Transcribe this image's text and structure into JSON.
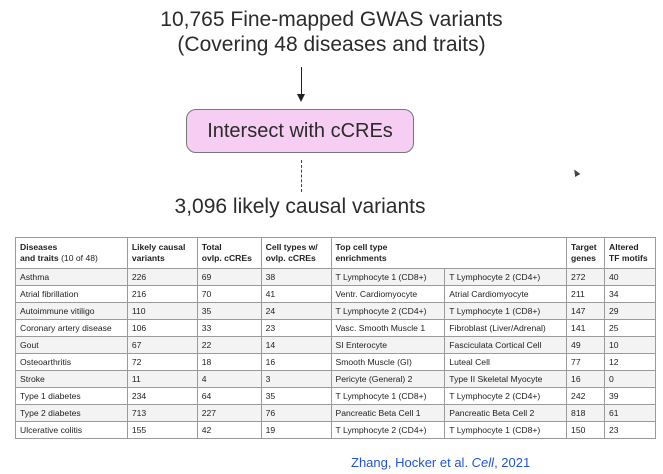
{
  "header": {
    "line1": "10,765 Fine-mapped GWAS variants",
    "line2": "(Covering 48 diseases and traits)"
  },
  "step_box": "Intersect with cCREs",
  "result": "3,096 likely causal variants",
  "table": {
    "columns": [
      {
        "line1": "Diseases",
        "line2": "and traits",
        "line2_extra": " (10 of 48)"
      },
      {
        "line1": "Likely causal",
        "line2": "variants"
      },
      {
        "line1": "Total",
        "line2": "ovlp. cCREs"
      },
      {
        "line1": "Cell types w/",
        "line2": "ovlp. cCREs"
      },
      {
        "line1": "Top cell type",
        "line2": "enrichments"
      },
      {
        "line1": "Target",
        "line2": "genes"
      },
      {
        "line1": "Altered",
        "line2": "TF motifs"
      }
    ],
    "rows": [
      [
        "Asthma",
        "226",
        "69",
        "38",
        "T Lymphocyte 1 (CD8+)",
        "T Lymphocyte 2 (CD4+)",
        "272",
        "40"
      ],
      [
        "Atrial fibrillation",
        "216",
        "70",
        "41",
        "Ventr. Cardiomyocyte",
        "Atrial Cardiomyocyte",
        "211",
        "34"
      ],
      [
        "Autoimmune vitiligo",
        "110",
        "35",
        "24",
        "T Lymphocyte 2 (CD4+)",
        "T Lymphocyte 1 (CD8+)",
        "147",
        "29"
      ],
      [
        "Coronary artery disease",
        "106",
        "33",
        "23",
        "Vasc. Smooth Muscle 1",
        "Fibroblast (Liver/Adrenal)",
        "141",
        "25"
      ],
      [
        "Gout",
        "67",
        "22",
        "14",
        "SI Enterocyte",
        "Fasciculata Cortical Cell",
        "49",
        "10"
      ],
      [
        "Osteoarthritis",
        "72",
        "18",
        "16",
        "Smooth Muscle (GI)",
        "Luteal Cell",
        "77",
        "12"
      ],
      [
        "Stroke",
        "11",
        "4",
        "3",
        "Pericyte (General) 2",
        "Type II Skeletal Myocyte",
        "16",
        "0"
      ],
      [
        "Type 1 diabetes",
        "234",
        "64",
        "35",
        "T Lymphocyte 1 (CD8+)",
        "T Lymphocyte 2 (CD4+)",
        "242",
        "39"
      ],
      [
        "Type 2 diabetes",
        "713",
        "227",
        "76",
        "Pancreatic Beta Cell 1",
        "Pancreatic Beta Cell 2",
        "818",
        "61"
      ],
      [
        "Ulcerative colitis",
        "155",
        "42",
        "19",
        "T Lymphocyte 2 (CD4+)",
        "T Lymphocyte 1 (CD8+)",
        "150",
        "23"
      ]
    ]
  },
  "citation": {
    "authors": "Zhang, Hocker et al. ",
    "journal": "Cell",
    "year": ", 2021"
  }
}
